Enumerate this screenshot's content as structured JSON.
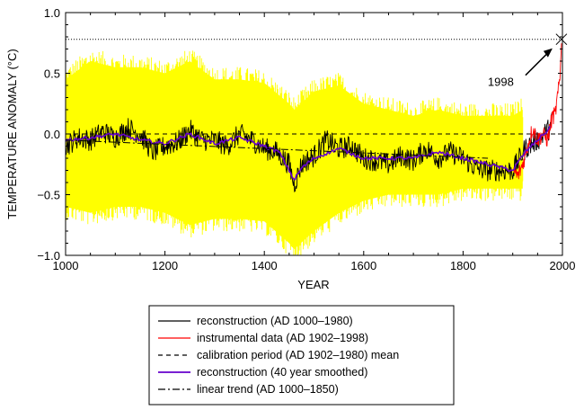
{
  "chart_data": {
    "type": "line",
    "xlabel": "YEAR",
    "ylabel": "TEMPERATURE ANOMALY (°C)",
    "xlim": [
      1000,
      2000
    ],
    "ylim": [
      -1.0,
      1.0
    ],
    "x_ticks": [
      1000,
      1200,
      1400,
      1600,
      1800,
      2000
    ],
    "x_tick_labels": [
      "1000",
      "1200",
      "1400",
      "1600",
      "1800",
      "2000"
    ],
    "y_ticks": [
      -1.0,
      -0.5,
      0.0,
      0.5,
      1.0
    ],
    "y_tick_labels": [
      "−1.0",
      "−0.5",
      "0.0",
      "0.5",
      "1.0"
    ],
    "grid": false,
    "reference_lines": [
      {
        "y": 0.78,
        "style": "dotted",
        "color": "#000000"
      },
      {
        "y": 0.0,
        "style": "dashed",
        "color": "#000000"
      }
    ],
    "annotation": {
      "text": "1998",
      "points_to": [
        1998,
        0.78
      ],
      "marker": "x"
    },
    "uncertainty_band": {
      "color": "#ffff00",
      "x": [
        1000,
        1050,
        1100,
        1150,
        1200,
        1250,
        1300,
        1350,
        1400,
        1450,
        1460,
        1500,
        1550,
        1600,
        1650,
        1700,
        1750,
        1800,
        1850,
        1900,
        1920
      ],
      "lower": [
        -0.6,
        -0.65,
        -0.6,
        -0.6,
        -0.65,
        -0.75,
        -0.7,
        -0.7,
        -0.72,
        -0.9,
        -0.95,
        -0.8,
        -0.65,
        -0.55,
        -0.5,
        -0.5,
        -0.5,
        -0.45,
        -0.45,
        -0.45,
        -0.45
      ],
      "upper": [
        0.45,
        0.6,
        0.55,
        0.55,
        0.5,
        0.6,
        0.45,
        0.45,
        0.42,
        0.25,
        0.2,
        0.35,
        0.4,
        0.25,
        0.2,
        0.15,
        0.2,
        0.15,
        0.15,
        0.15,
        0.2
      ]
    },
    "series": [
      {
        "name": "reconstruction (AD 1000–1980)",
        "color": "#000000",
        "style": "solid",
        "x": [
          1000,
          1025,
          1050,
          1075,
          1100,
          1125,
          1150,
          1175,
          1200,
          1225,
          1250,
          1275,
          1300,
          1325,
          1350,
          1375,
          1400,
          1425,
          1450,
          1460,
          1475,
          1500,
          1525,
          1550,
          1575,
          1600,
          1625,
          1650,
          1675,
          1700,
          1725,
          1750,
          1775,
          1800,
          1825,
          1850,
          1875,
          1900,
          1925,
          1950,
          1975,
          1980
        ],
        "y": [
          -0.1,
          -0.03,
          -0.05,
          0.02,
          -0.03,
          0.05,
          0.0,
          -0.15,
          -0.1,
          -0.07,
          0.03,
          -0.05,
          -0.05,
          -0.1,
          0.0,
          -0.05,
          -0.12,
          -0.15,
          -0.25,
          -0.42,
          -0.25,
          -0.18,
          -0.05,
          -0.12,
          -0.1,
          -0.2,
          -0.22,
          -0.25,
          -0.18,
          -0.22,
          -0.12,
          -0.2,
          -0.15,
          -0.2,
          -0.28,
          -0.3,
          -0.3,
          -0.3,
          -0.12,
          -0.05,
          0.05,
          0.12
        ]
      },
      {
        "name": "instrumental data (AD 1902–1998)",
        "color": "#ff0000",
        "style": "solid",
        "x": [
          1902,
          1910,
          1920,
          1930,
          1940,
          1950,
          1960,
          1970,
          1980,
          1985,
          1990,
          1995,
          1998
        ],
        "y": [
          -0.3,
          -0.35,
          -0.25,
          -0.1,
          0.05,
          -0.05,
          0.0,
          -0.05,
          0.15,
          0.15,
          0.3,
          0.45,
          0.78
        ]
      },
      {
        "name": "calibration period (AD 1902–1980) mean",
        "color": "#000000",
        "style": "dashed",
        "x": [
          1000,
          2000
        ],
        "y": [
          0.0,
          0.0
        ]
      },
      {
        "name": "reconstruction (40 year smoothed)",
        "color": "#6600cc",
        "style": "solid",
        "x": [
          1000,
          1050,
          1100,
          1150,
          1200,
          1250,
          1300,
          1350,
          1400,
          1430,
          1450,
          1460,
          1475,
          1500,
          1550,
          1600,
          1650,
          1700,
          1750,
          1800,
          1850,
          1900,
          1925,
          1950,
          1975
        ],
        "y": [
          -0.05,
          -0.03,
          0.0,
          -0.05,
          -0.08,
          0.0,
          -0.08,
          -0.03,
          -0.1,
          -0.15,
          -0.3,
          -0.38,
          -0.28,
          -0.2,
          -0.12,
          -0.2,
          -0.2,
          -0.2,
          -0.15,
          -0.2,
          -0.25,
          -0.3,
          -0.15,
          -0.05,
          0.05
        ]
      },
      {
        "name": "linear trend (AD 1000–1850)",
        "color": "#000000",
        "style": "dashdot",
        "x": [
          1000,
          1850
        ],
        "y": [
          -0.05,
          -0.2
        ]
      }
    ],
    "legend": {
      "position": "bottom"
    }
  }
}
